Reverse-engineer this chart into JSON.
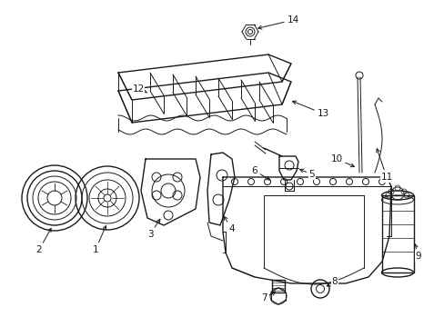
{
  "background_color": "#ffffff",
  "line_color": "#1a1a1a",
  "figsize": [
    4.89,
    3.6
  ],
  "dpi": 100,
  "xlim": [
    0,
    489
  ],
  "ylim": [
    0,
    360
  ]
}
